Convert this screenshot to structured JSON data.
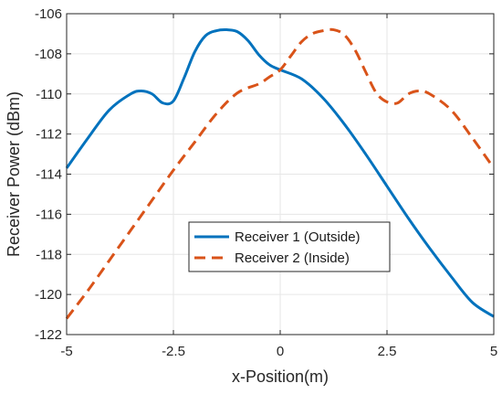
{
  "chart_data": {
    "type": "line",
    "title": "",
    "xlabel": "x-Position(m)",
    "ylabel": "Receiver Power (dBm)",
    "xlim": [
      -5,
      5
    ],
    "ylim": [
      -122,
      -106
    ],
    "xticks": [
      -5,
      -2.5,
      0,
      2.5,
      5
    ],
    "xtick_labels": [
      "-5",
      "-2.5",
      "0",
      "2.5",
      "5"
    ],
    "yticks": [
      -122,
      -120,
      -118,
      -116,
      -114,
      -112,
      -110,
      -108,
      -106
    ],
    "ytick_labels": [
      "-122",
      "-120",
      "-118",
      "-116",
      "-114",
      "-112",
      "-110",
      "-108",
      "-106"
    ],
    "grid": true,
    "legend_position": "center",
    "series": [
      {
        "name": "Receiver 1 (Outside)",
        "color": "#0072BD",
        "line_style": "solid",
        "x": [
          -5,
          -4.5,
          -4,
          -3.5,
          -3.25,
          -3,
          -2.75,
          -2.5,
          -2.25,
          -2,
          -1.75,
          -1.5,
          -1.25,
          -1,
          -0.75,
          -0.5,
          -0.25,
          0,
          0.5,
          1,
          1.5,
          2,
          2.5,
          3,
          3.5,
          4,
          4.5,
          5
        ],
        "y": [
          -113.7,
          -112.2,
          -110.8,
          -110.0,
          -109.85,
          -110.0,
          -110.45,
          -110.35,
          -109.2,
          -107.9,
          -107.1,
          -106.85,
          -106.8,
          -106.9,
          -107.35,
          -108.05,
          -108.55,
          -108.8,
          -109.25,
          -110.2,
          -111.5,
          -113.0,
          -114.6,
          -116.2,
          -117.7,
          -119.1,
          -120.4,
          -121.1
        ]
      },
      {
        "name": "Receiver 2 (Inside)",
        "color": "#D95319",
        "line_style": "dashed",
        "x": [
          -5,
          -4.5,
          -4,
          -3.5,
          -3,
          -2.5,
          -2,
          -1.5,
          -1,
          -0.5,
          -0.25,
          0,
          0.25,
          0.5,
          0.75,
          1,
          1.25,
          1.5,
          1.75,
          2,
          2.25,
          2.5,
          2.75,
          3,
          3.25,
          3.5,
          4,
          4.5,
          5
        ],
        "y": [
          -121.2,
          -119.8,
          -118.3,
          -116.8,
          -115.3,
          -113.8,
          -112.4,
          -111.0,
          -109.95,
          -109.5,
          -109.15,
          -108.8,
          -108.1,
          -107.4,
          -107.0,
          -106.85,
          -106.8,
          -107.05,
          -107.8,
          -108.9,
          -109.95,
          -110.4,
          -110.45,
          -110.0,
          -109.85,
          -110.0,
          -110.8,
          -112.2,
          -113.7
        ]
      }
    ]
  }
}
